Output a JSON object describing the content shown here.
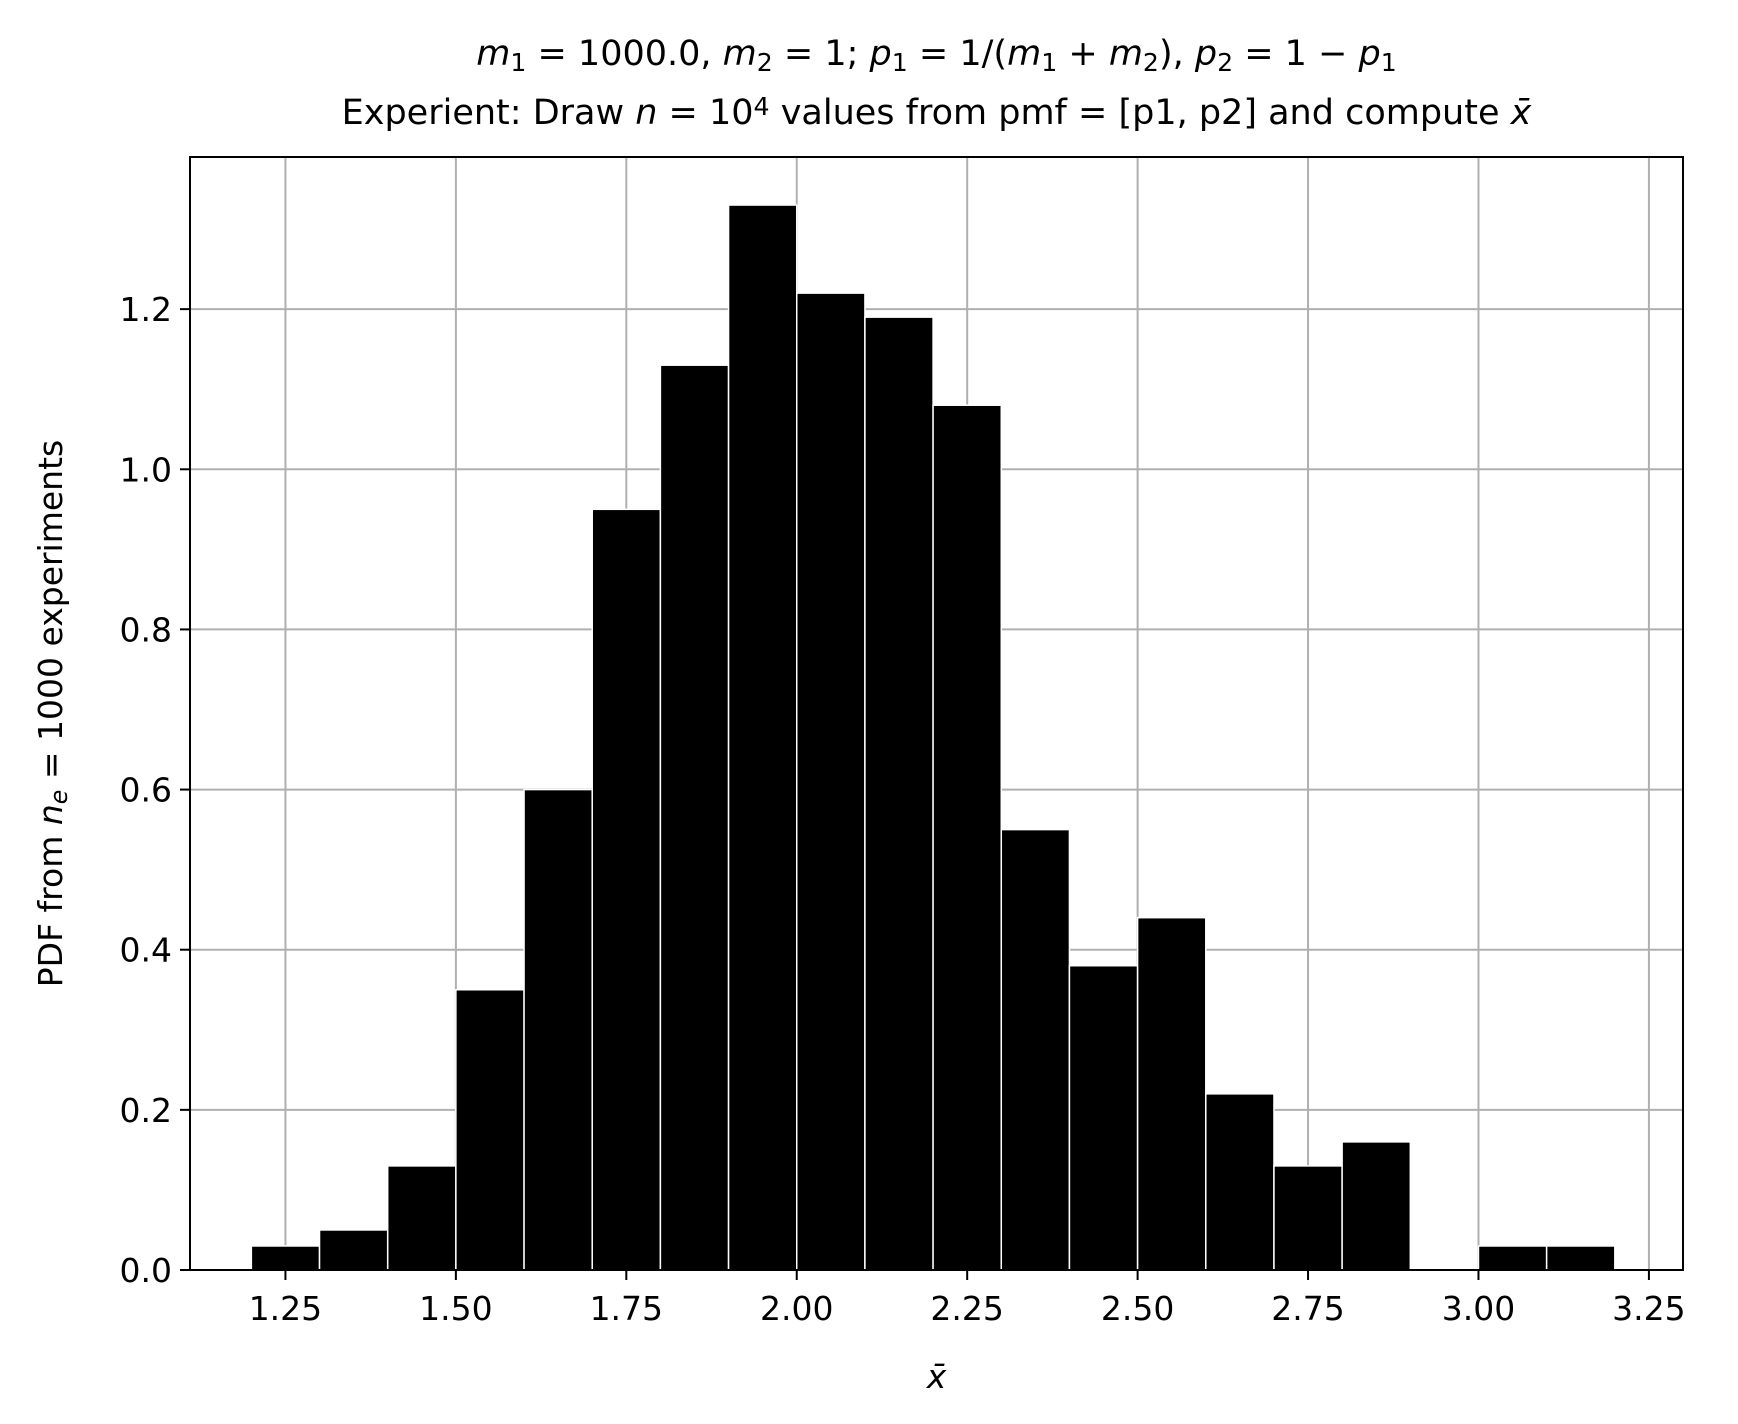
{
  "chart_data": {
    "type": "bar",
    "title_line1": {
      "text": "m_1 = 1000.0, m_2 = 1; p_1 = 1/(m_1 + m_2), p_2 = 1 − p_1",
      "parts": [
        {
          "t": "m",
          "i": true
        },
        {
          "t": "1",
          "sub": true
        },
        {
          "t": " = 1000.0, "
        },
        {
          "t": "m",
          "i": true
        },
        {
          "t": "2",
          "sub": true
        },
        {
          "t": " = 1; "
        },
        {
          "t": "p",
          "i": true
        },
        {
          "t": "1",
          "sub": true
        },
        {
          "t": " = 1/("
        },
        {
          "t": "m",
          "i": true
        },
        {
          "t": "1",
          "sub": true
        },
        {
          "t": " + "
        },
        {
          "t": "m",
          "i": true
        },
        {
          "t": "2",
          "sub": true
        },
        {
          "t": "), "
        },
        {
          "t": "p",
          "i": true
        },
        {
          "t": "2",
          "sub": true
        },
        {
          "t": " = 1 − "
        },
        {
          "t": "p",
          "i": true
        },
        {
          "t": "1",
          "sub": true
        }
      ]
    },
    "title_line2": {
      "text": "Experient: Draw n = 10^4 values from pmf = [p1, p2] and compute x̄",
      "parts": [
        {
          "t": "Experient: Draw "
        },
        {
          "t": "n",
          "i": true
        },
        {
          "t": " = 10"
        },
        {
          "t": "4",
          "sup": true
        },
        {
          "t": " values from pmf = [p1, p2] and compute "
        },
        {
          "t": "x̄",
          "i": true
        }
      ]
    },
    "xlabel": {
      "text": "x̄",
      "parts": [
        {
          "t": "x̄",
          "i": true
        }
      ]
    },
    "ylabel": {
      "text": "PDF from n_e = 1000 experiments",
      "parts": [
        {
          "t": "PDF from "
        },
        {
          "t": "n",
          "i": true
        },
        {
          "t": "e",
          "sub": true,
          "i": true
        },
        {
          "t": " = 1000 experiments"
        }
      ]
    },
    "xlim": [
      1.11,
      3.3
    ],
    "ylim": [
      0,
      1.39
    ],
    "xticks": [
      "1.25",
      "1.50",
      "1.75",
      "2.00",
      "2.25",
      "2.50",
      "2.75",
      "3.00",
      "3.25"
    ],
    "yticks": [
      "0.0",
      "0.2",
      "0.4",
      "0.6",
      "0.8",
      "1.0",
      "1.2"
    ],
    "grid": true,
    "bar_color": "#000000",
    "bar_edge_color": "#ffffff",
    "grid_color": "#b0b0b0",
    "bins": [
      {
        "x0": 1.2,
        "x1": 1.3,
        "value": 0.03
      },
      {
        "x0": 1.3,
        "x1": 1.4,
        "value": 0.05
      },
      {
        "x0": 1.4,
        "x1": 1.5,
        "value": 0.13
      },
      {
        "x0": 1.5,
        "x1": 1.6,
        "value": 0.35
      },
      {
        "x0": 1.6,
        "x1": 1.7,
        "value": 0.6
      },
      {
        "x0": 1.7,
        "x1": 1.8,
        "value": 0.95
      },
      {
        "x0": 1.8,
        "x1": 1.9,
        "value": 1.13
      },
      {
        "x0": 1.9,
        "x1": 2.0,
        "value": 1.33
      },
      {
        "x0": 2.0,
        "x1": 2.1,
        "value": 1.22
      },
      {
        "x0": 2.1,
        "x1": 2.2,
        "value": 1.19
      },
      {
        "x0": 2.2,
        "x1": 2.3,
        "value": 1.08
      },
      {
        "x0": 2.3,
        "x1": 2.4,
        "value": 0.55
      },
      {
        "x0": 2.4,
        "x1": 2.5,
        "value": 0.38
      },
      {
        "x0": 2.5,
        "x1": 2.6,
        "value": 0.44
      },
      {
        "x0": 2.6,
        "x1": 2.7,
        "value": 0.22
      },
      {
        "x0": 2.7,
        "x1": 2.8,
        "value": 0.13
      },
      {
        "x0": 2.8,
        "x1": 2.9,
        "value": 0.16
      },
      {
        "x0": 2.9,
        "x1": 3.0,
        "value": 0.0
      },
      {
        "x0": 3.0,
        "x1": 3.1,
        "value": 0.03
      },
      {
        "x0": 3.1,
        "x1": 3.2,
        "value": 0.03
      }
    ]
  }
}
